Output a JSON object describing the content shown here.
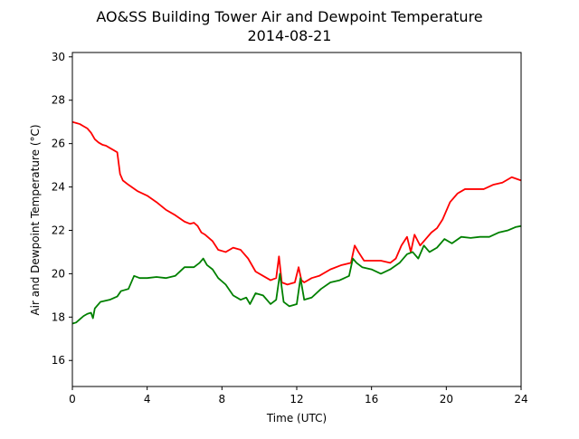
{
  "chart_data": {
    "type": "line",
    "title": "AO&SS Building Tower Air and Dewpoint Temperature",
    "subtitle": "2014-08-21",
    "xlabel": "Time (UTC)",
    "ylabel": "Air and Dewpoint Temperature (°C)",
    "xlim": [
      0,
      24
    ],
    "ylim": [
      14.8,
      30.2
    ],
    "grid": false,
    "xticks": [
      0,
      4,
      8,
      12,
      16,
      20,
      24
    ],
    "xtick_labels": [
      "0",
      "4",
      "8",
      "12",
      "16",
      "20",
      "24"
    ],
    "yticks": [
      16,
      18,
      20,
      22,
      24,
      26,
      28,
      30
    ],
    "ytick_labels": [
      "16",
      "18",
      "20",
      "22",
      "24",
      "26",
      "28",
      "30"
    ],
    "series": [
      {
        "color": "#ff0000",
        "x": [
          0,
          0.2,
          0.4,
          0.6,
          0.8,
          1.0,
          1.2,
          1.4,
          1.6,
          1.8,
          2.0,
          2.2,
          2.4,
          2.55,
          2.7,
          3.0,
          3.5,
          4.0,
          4.5,
          5.0,
          5.5,
          6.0,
          6.3,
          6.5,
          6.7,
          6.9,
          7.1,
          7.5,
          7.8,
          8.2,
          8.6,
          9.0,
          9.4,
          9.8,
          10.2,
          10.6,
          10.9,
          11.05,
          11.2,
          11.5,
          11.9,
          12.1,
          12.25,
          12.4,
          12.8,
          13.2,
          13.8,
          14.4,
          14.9,
          15.1,
          15.3,
          15.6,
          16.0,
          16.5,
          17.0,
          17.3,
          17.6,
          17.9,
          18.1,
          18.3,
          18.6,
          18.9,
          19.2,
          19.5,
          19.8,
          20.2,
          20.6,
          21.0,
          21.5,
          22.0,
          22.5,
          23.0,
          23.5,
          24.0
        ],
        "y": [
          27.0,
          26.95,
          26.9,
          26.8,
          26.7,
          26.5,
          26.2,
          26.05,
          25.95,
          25.9,
          25.8,
          25.7,
          25.6,
          24.6,
          24.3,
          24.1,
          23.8,
          23.6,
          23.3,
          22.95,
          22.7,
          22.4,
          22.3,
          22.35,
          22.2,
          21.9,
          21.8,
          21.5,
          21.1,
          21.0,
          21.2,
          21.1,
          20.7,
          20.1,
          19.9,
          19.7,
          19.8,
          20.8,
          19.6,
          19.5,
          19.6,
          20.3,
          19.7,
          19.6,
          19.8,
          19.9,
          20.2,
          20.4,
          20.5,
          21.3,
          21.0,
          20.6,
          20.6,
          20.6,
          20.5,
          20.7,
          21.3,
          21.7,
          21.0,
          21.8,
          21.3,
          21.6,
          21.9,
          22.1,
          22.5,
          23.3,
          23.7,
          23.9,
          23.9,
          23.9,
          24.1,
          24.2,
          24.45,
          24.3
        ]
      },
      {
        "color": "#008000",
        "x": [
          0,
          0.2,
          0.4,
          0.6,
          0.8,
          1.0,
          1.1,
          1.2,
          1.5,
          2.0,
          2.4,
          2.6,
          3.0,
          3.3,
          3.6,
          4.0,
          4.5,
          5.0,
          5.5,
          6.0,
          6.5,
          6.8,
          7.0,
          7.2,
          7.5,
          7.8,
          8.2,
          8.6,
          9.0,
          9.3,
          9.5,
          9.8,
          10.2,
          10.6,
          10.9,
          11.1,
          11.3,
          11.6,
          12.0,
          12.2,
          12.4,
          12.8,
          13.3,
          13.8,
          14.3,
          14.8,
          15.0,
          15.2,
          15.5,
          16.0,
          16.5,
          17.0,
          17.5,
          17.9,
          18.2,
          18.5,
          18.8,
          19.1,
          19.5,
          19.9,
          20.3,
          20.8,
          21.3,
          21.8,
          22.3,
          22.8,
          23.3,
          23.7,
          24.0
        ],
        "y": [
          17.7,
          17.75,
          17.9,
          18.05,
          18.15,
          18.2,
          17.95,
          18.4,
          18.7,
          18.8,
          18.95,
          19.2,
          19.3,
          19.9,
          19.8,
          19.8,
          19.85,
          19.8,
          19.9,
          20.3,
          20.3,
          20.5,
          20.7,
          20.4,
          20.2,
          19.8,
          19.5,
          19.0,
          18.8,
          18.9,
          18.6,
          19.1,
          19.0,
          18.6,
          18.8,
          20.0,
          18.7,
          18.5,
          18.6,
          19.8,
          18.8,
          18.9,
          19.3,
          19.6,
          19.7,
          19.9,
          20.7,
          20.5,
          20.3,
          20.2,
          20.0,
          20.2,
          20.5,
          20.9,
          21.0,
          20.7,
          21.3,
          21.0,
          21.2,
          21.6,
          21.4,
          21.7,
          21.65,
          21.7,
          21.7,
          21.9,
          22.0,
          22.15,
          22.2
        ]
      }
    ]
  }
}
